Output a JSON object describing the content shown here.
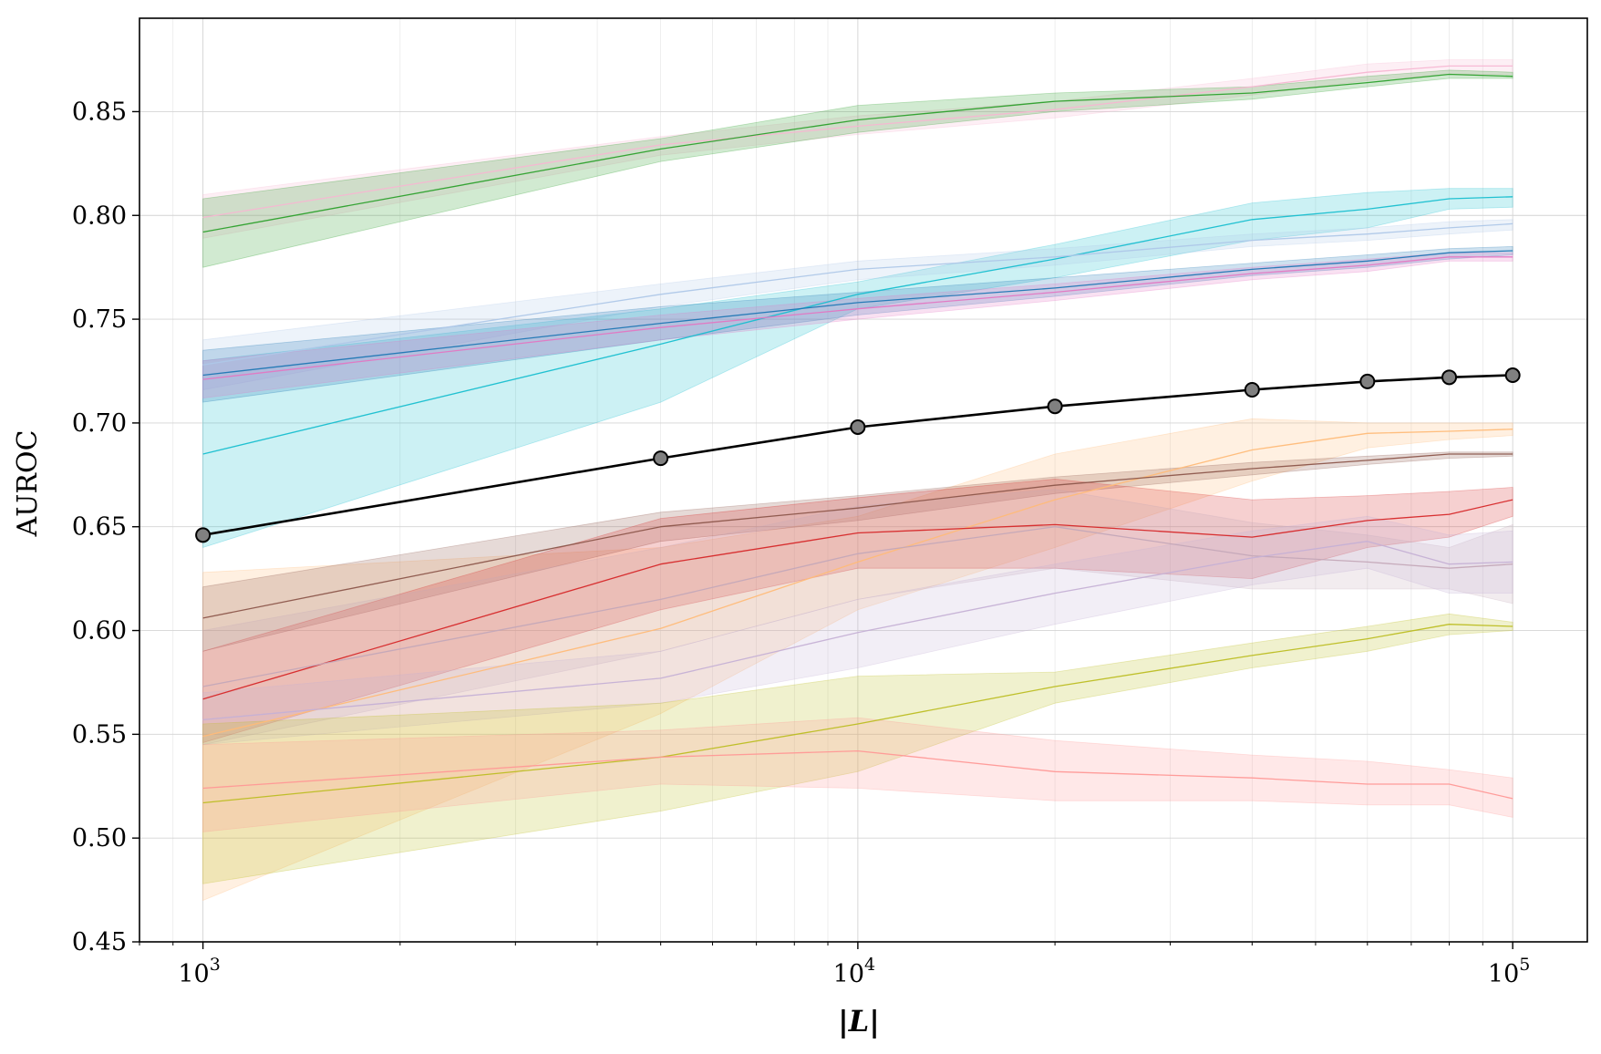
{
  "chart_data": {
    "type": "line",
    "title": "",
    "xlabel": "|L|",
    "ylabel": "AUROC",
    "xscale": "log",
    "xlim": [
      800,
      130000
    ],
    "ylim": [
      0.45,
      0.895
    ],
    "yticks": [
      0.45,
      0.5,
      0.55,
      0.6,
      0.65,
      0.7,
      0.75,
      0.8,
      0.85
    ],
    "ytick_labels": [
      "0.45",
      "0.50",
      "0.55",
      "0.60",
      "0.65",
      "0.70",
      "0.75",
      "0.80",
      "0.85"
    ],
    "xticks": [
      1000,
      10000,
      100000
    ],
    "xtick_labels": [
      {
        "base": "10",
        "exp": "3"
      },
      {
        "base": "10",
        "exp": "4"
      },
      {
        "base": "10",
        "exp": "5"
      }
    ],
    "grid": true,
    "legend": "none",
    "x": [
      1000,
      5000,
      10000,
      20000,
      40000,
      60000,
      80000,
      100000
    ],
    "series": [
      {
        "name": "pink",
        "color": "#f7b6d2",
        "values": [
          0.799,
          0.834,
          0.843,
          0.851,
          0.862,
          0.869,
          0.872,
          0.872
        ],
        "lower": [
          0.789,
          0.829,
          0.839,
          0.847,
          0.858,
          0.865,
          0.868,
          0.868
        ],
        "upper": [
          0.81,
          0.838,
          0.848,
          0.855,
          0.866,
          0.873,
          0.875,
          0.875
        ]
      },
      {
        "name": "green",
        "color": "#2ca02c",
        "values": [
          0.792,
          0.832,
          0.846,
          0.855,
          0.859,
          0.864,
          0.868,
          0.867
        ],
        "lower": [
          0.775,
          0.826,
          0.84,
          0.85,
          0.856,
          0.862,
          0.866,
          0.866
        ],
        "upper": [
          0.808,
          0.837,
          0.853,
          0.859,
          0.862,
          0.867,
          0.87,
          0.869
        ]
      },
      {
        "name": "cyan",
        "color": "#17becf",
        "values": [
          0.685,
          0.738,
          0.762,
          0.779,
          0.798,
          0.803,
          0.808,
          0.809
        ],
        "lower": [
          0.64,
          0.71,
          0.755,
          0.77,
          0.788,
          0.794,
          0.803,
          0.804
        ],
        "upper": [
          0.73,
          0.755,
          0.768,
          0.786,
          0.806,
          0.811,
          0.813,
          0.813
        ]
      },
      {
        "name": "light-blue",
        "color": "#aec7e8",
        "values": [
          0.728,
          0.762,
          0.774,
          0.78,
          0.788,
          0.791,
          0.794,
          0.796
        ],
        "lower": [
          0.716,
          0.756,
          0.769,
          0.776,
          0.785,
          0.788,
          0.791,
          0.793
        ],
        "upper": [
          0.74,
          0.767,
          0.778,
          0.784,
          0.791,
          0.794,
          0.797,
          0.798
        ]
      },
      {
        "name": "blue",
        "color": "#1f77b4",
        "values": [
          0.723,
          0.748,
          0.758,
          0.765,
          0.774,
          0.778,
          0.782,
          0.783
        ],
        "lower": [
          0.71,
          0.74,
          0.752,
          0.761,
          0.771,
          0.775,
          0.779,
          0.781
        ],
        "upper": [
          0.735,
          0.756,
          0.763,
          0.77,
          0.777,
          0.781,
          0.784,
          0.785
        ]
      },
      {
        "name": "orchid",
        "color": "#e377c2",
        "values": [
          0.721,
          0.746,
          0.755,
          0.763,
          0.772,
          0.776,
          0.78,
          0.78
        ],
        "lower": [
          0.712,
          0.74,
          0.75,
          0.759,
          0.769,
          0.773,
          0.778,
          0.778
        ],
        "upper": [
          0.73,
          0.752,
          0.76,
          0.767,
          0.775,
          0.779,
          0.782,
          0.782
        ]
      },
      {
        "name": "peach",
        "color": "#ffbb78",
        "values": [
          0.549,
          0.601,
          0.633,
          0.663,
          0.687,
          0.695,
          0.696,
          0.697
        ],
        "lower": [
          0.47,
          0.56,
          0.61,
          0.64,
          0.672,
          0.688,
          0.692,
          0.694
        ],
        "upper": [
          0.628,
          0.64,
          0.655,
          0.685,
          0.702,
          0.7,
          0.7,
          0.7
        ]
      },
      {
        "name": "brown",
        "color": "#8c564b",
        "values": [
          0.606,
          0.65,
          0.659,
          0.67,
          0.678,
          0.682,
          0.685,
          0.685
        ],
        "lower": [
          0.59,
          0.643,
          0.653,
          0.666,
          0.675,
          0.68,
          0.683,
          0.684
        ],
        "upper": [
          0.621,
          0.657,
          0.665,
          0.674,
          0.681,
          0.684,
          0.686,
          0.686
        ]
      },
      {
        "name": "red",
        "color": "#d62728",
        "values": [
          0.567,
          0.632,
          0.647,
          0.651,
          0.645,
          0.653,
          0.656,
          0.663
        ],
        "lower": [
          0.546,
          0.61,
          0.63,
          0.63,
          0.625,
          0.64,
          0.645,
          0.655
        ],
        "upper": [
          0.59,
          0.654,
          0.664,
          0.673,
          0.663,
          0.665,
          0.667,
          0.669
        ]
      },
      {
        "name": "grey-mauve",
        "color": "#c4a8b8",
        "values": [
          0.573,
          0.615,
          0.637,
          0.65,
          0.636,
          0.633,
          0.63,
          0.632
        ],
        "lower": [
          0.545,
          0.59,
          0.615,
          0.63,
          0.62,
          0.62,
          0.62,
          0.613
        ],
        "upper": [
          0.6,
          0.64,
          0.66,
          0.668,
          0.652,
          0.646,
          0.64,
          0.651
        ]
      },
      {
        "name": "lavender",
        "color": "#c5b0d5",
        "values": [
          0.557,
          0.577,
          0.599,
          0.618,
          0.635,
          0.643,
          0.632,
          0.633
        ],
        "lower": [
          0.545,
          0.565,
          0.582,
          0.603,
          0.622,
          0.63,
          0.618,
          0.618
        ],
        "upper": [
          0.57,
          0.59,
          0.615,
          0.632,
          0.648,
          0.655,
          0.646,
          0.648
        ]
      },
      {
        "name": "olive",
        "color": "#bcbd22",
        "values": [
          0.517,
          0.539,
          0.555,
          0.573,
          0.588,
          0.596,
          0.603,
          0.602
        ],
        "lower": [
          0.478,
          0.513,
          0.532,
          0.565,
          0.582,
          0.59,
          0.598,
          0.6
        ],
        "upper": [
          0.555,
          0.565,
          0.578,
          0.58,
          0.594,
          0.602,
          0.608,
          0.604
        ]
      },
      {
        "name": "salmon",
        "color": "#ff9896",
        "values": [
          0.524,
          0.539,
          0.542,
          0.532,
          0.529,
          0.526,
          0.526,
          0.519
        ],
        "lower": [
          0.503,
          0.526,
          0.524,
          0.518,
          0.518,
          0.516,
          0.516,
          0.51
        ],
        "upper": [
          0.545,
          0.552,
          0.558,
          0.547,
          0.54,
          0.537,
          0.533,
          0.529
        ]
      },
      {
        "name": "mean",
        "color": "#000000",
        "markers": true,
        "values": [
          0.646,
          0.683,
          0.698,
          0.708,
          0.716,
          0.72,
          0.722,
          0.723
        ]
      }
    ]
  }
}
